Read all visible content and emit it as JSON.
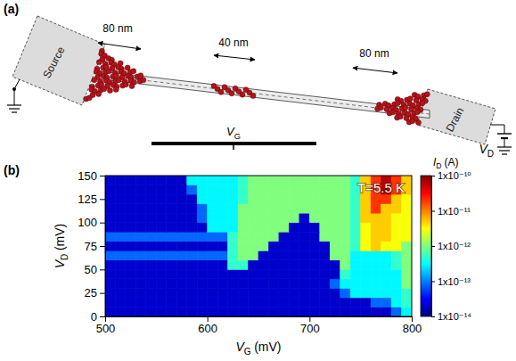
{
  "diagram": {
    "panel_label": "(a)",
    "source": "Source",
    "drain": "Drain",
    "dimensions": [
      "80 nm",
      "40 nm",
      "80 nm"
    ],
    "gate": {
      "symbol": "V",
      "subscript": "G"
    },
    "bias": {
      "symbol": "V",
      "subscript": "D"
    }
  },
  "chart_data": {
    "type": "heatmap",
    "panel_label": "(b)",
    "annotation": "T=5.5 K",
    "x_label": {
      "symbol": "V",
      "subscript": "G",
      "unit": "(mV)"
    },
    "y_label": {
      "symbol": "V",
      "subscript": "D",
      "unit": "(mV)"
    },
    "xlim": [
      500,
      800
    ],
    "ylim": [
      0,
      150
    ],
    "xticks": [
      500,
      600,
      700,
      800
    ],
    "yticks": [
      0,
      25,
      50,
      75,
      100,
      125,
      150
    ],
    "x": [
      505,
      515,
      525,
      535,
      545,
      555,
      565,
      575,
      585,
      595,
      605,
      615,
      625,
      635,
      645,
      655,
      665,
      675,
      685,
      695,
      705,
      715,
      725,
      735,
      745,
      755,
      765,
      775,
      785,
      795
    ],
    "y": [
      5,
      15,
      25,
      35,
      45,
      55,
      65,
      75,
      85,
      95,
      105,
      115,
      125,
      135,
      145
    ],
    "z": [
      [
        2e-14,
        2e-14,
        2e-14,
        2e-14,
        2e-14,
        2e-14,
        2e-14,
        2e-14,
        2e-14,
        2e-14,
        2e-14,
        2e-14,
        2e-14,
        2e-14,
        2e-14,
        2e-14,
        2e-14,
        2e-14,
        2e-14,
        2e-14,
        2e-14,
        2e-14,
        2e-14,
        2e-14,
        2e-14,
        2e-14,
        2e-14,
        2e-14,
        8e-14,
        3e-13
      ],
      [
        2e-14,
        2e-14,
        2e-14,
        2e-14,
        2e-14,
        2e-14,
        2e-14,
        2e-14,
        2e-14,
        2e-14,
        2e-14,
        2e-14,
        2e-14,
        2e-14,
        2e-14,
        2e-14,
        2e-14,
        2e-14,
        2e-14,
        2e-14,
        2e-14,
        2e-14,
        2e-14,
        2e-14,
        2e-14,
        2e-14,
        8e-14,
        8e-14,
        3e-13,
        5e-13
      ],
      [
        2e-14,
        2e-14,
        2e-14,
        2e-14,
        2e-14,
        2e-14,
        2e-14,
        2e-14,
        2e-14,
        2e-14,
        2e-14,
        2e-14,
        2e-14,
        2e-14,
        2e-14,
        2e-14,
        2e-14,
        2e-14,
        2e-14,
        2e-14,
        2e-14,
        2e-14,
        2e-14,
        8e-14,
        3e-13,
        3e-13,
        3e-13,
        3e-13,
        3e-13,
        5e-13
      ],
      [
        2e-14,
        2e-14,
        2e-14,
        2e-14,
        2e-14,
        2e-14,
        2e-14,
        2e-14,
        2e-14,
        2e-14,
        2e-14,
        2e-14,
        2e-14,
        2e-14,
        2e-14,
        2e-14,
        2e-14,
        2e-14,
        2e-14,
        2e-14,
        2e-14,
        2e-14,
        8e-14,
        3e-13,
        3e-13,
        3e-13,
        3e-13,
        3e-13,
        3e-13,
        1e-12
      ],
      [
        2e-14,
        2e-14,
        2e-14,
        2e-14,
        2e-14,
        2e-14,
        2e-14,
        2e-14,
        2e-14,
        2e-14,
        2e-14,
        2e-14,
        2e-14,
        2e-14,
        2e-14,
        2e-14,
        2e-14,
        2e-14,
        2e-14,
        2e-14,
        2e-14,
        2e-14,
        2e-14,
        5e-13,
        3e-13,
        3e-13,
        3e-13,
        3e-13,
        3e-13,
        1e-12
      ],
      [
        2e-14,
        2e-14,
        2e-14,
        2e-14,
        2e-14,
        2e-14,
        2e-14,
        2e-14,
        2e-14,
        2e-14,
        2e-14,
        2e-14,
        5e-13,
        5e-13,
        2e-14,
        2e-14,
        2e-14,
        2e-14,
        2e-14,
        2e-14,
        2e-14,
        2e-14,
        2e-14,
        1e-12,
        3e-13,
        3e-13,
        3e-13,
        3e-13,
        5e-13,
        1e-12
      ],
      [
        8e-14,
        8e-14,
        8e-14,
        8e-14,
        8e-14,
        8e-14,
        8e-14,
        8e-14,
        8e-14,
        8e-14,
        8e-14,
        8e-14,
        5e-13,
        1e-12,
        1e-12,
        2e-14,
        2e-14,
        2e-14,
        2e-14,
        2e-14,
        2e-14,
        2e-14,
        1e-12,
        1e-12,
        3e-13,
        3e-13,
        3e-13,
        3e-13,
        5e-13,
        1e-12
      ],
      [
        2e-14,
        2e-14,
        2e-14,
        2e-14,
        2e-14,
        2e-14,
        2e-14,
        2e-14,
        2e-14,
        2e-14,
        2e-14,
        2e-14,
        5e-13,
        1e-12,
        1e-12,
        1e-12,
        2e-14,
        2e-14,
        2e-14,
        2e-14,
        2e-14,
        2e-14,
        1e-12,
        1e-12,
        5e-13,
        3e-12,
        5e-12,
        3e-12,
        3e-12,
        1e-12
      ],
      [
        8e-14,
        8e-14,
        8e-14,
        8e-14,
        8e-14,
        8e-14,
        8e-14,
        8e-14,
        8e-14,
        8e-14,
        8e-14,
        8e-14,
        5e-13,
        1e-12,
        1e-12,
        1e-12,
        1e-12,
        2e-14,
        2e-14,
        2e-14,
        2e-14,
        1e-12,
        1e-12,
        1e-12,
        5e-13,
        3e-12,
        5e-12,
        5e-12,
        3e-12,
        3e-12
      ],
      [
        2e-14,
        2e-14,
        2e-14,
        2e-14,
        2e-14,
        2e-14,
        2e-14,
        2e-14,
        2e-14,
        2e-14,
        3e-13,
        3e-13,
        3e-13,
        1e-12,
        1e-12,
        1e-12,
        1e-12,
        1e-12,
        2e-14,
        2e-14,
        2e-14,
        1e-12,
        1e-12,
        1e-12,
        5e-13,
        3e-12,
        5e-12,
        5e-12,
        3e-12,
        3e-12
      ],
      [
        2e-14,
        2e-14,
        2e-14,
        2e-14,
        2e-14,
        2e-14,
        2e-14,
        2e-14,
        2e-14,
        8e-14,
        3e-13,
        3e-13,
        3e-13,
        1e-12,
        1e-12,
        1e-12,
        1e-12,
        1e-12,
        1e-12,
        2e-14,
        1e-12,
        1e-12,
        1e-12,
        1e-12,
        5e-13,
        5e-12,
        5e-12,
        5e-12,
        3e-12,
        3e-12
      ],
      [
        2e-14,
        2e-14,
        2e-14,
        2e-14,
        2e-14,
        2e-14,
        2e-14,
        2e-14,
        2e-14,
        8e-14,
        3e-13,
        3e-13,
        3e-13,
        1e-12,
        1e-12,
        1e-12,
        1e-12,
        1e-12,
        1e-12,
        1e-12,
        1e-12,
        1e-12,
        1e-12,
        1e-12,
        5e-13,
        5e-12,
        2e-11,
        5e-12,
        5e-12,
        3e-12
      ],
      [
        2e-14,
        2e-14,
        2e-14,
        2e-14,
        2e-14,
        2e-14,
        2e-14,
        2e-14,
        2e-14,
        3e-13,
        3e-13,
        3e-13,
        3e-13,
        5e-13,
        1e-12,
        1e-12,
        1e-12,
        1e-12,
        1e-12,
        1e-12,
        1e-12,
        1e-12,
        1e-12,
        1e-12,
        5e-13,
        5e-12,
        2e-11,
        2e-11,
        5e-12,
        3e-12
      ],
      [
        2e-14,
        2e-14,
        2e-14,
        2e-14,
        2e-14,
        2e-14,
        2e-14,
        2e-14,
        8e-14,
        3e-13,
        3e-13,
        3e-13,
        3e-13,
        5e-13,
        1e-12,
        1e-12,
        1e-12,
        1e-12,
        1e-12,
        1e-12,
        1e-12,
        1e-12,
        1e-12,
        1e-12,
        5e-13,
        5e-12,
        2e-11,
        6e-11,
        2e-11,
        5e-12
      ],
      [
        2e-14,
        2e-14,
        2e-14,
        2e-14,
        2e-14,
        2e-14,
        2e-14,
        2e-14,
        3e-13,
        3e-13,
        3e-13,
        3e-13,
        3e-13,
        5e-13,
        1e-12,
        1e-12,
        1e-12,
        1e-12,
        1e-12,
        1e-12,
        1e-12,
        1e-12,
        1e-12,
        1e-12,
        5e-13,
        5e-12,
        2e-11,
        6e-11,
        2e-11,
        5e-12
      ]
    ],
    "colorbar": {
      "title": {
        "symbol": "I",
        "subscript": "D",
        "unit": "(A)"
      },
      "range": [
        1e-14,
        1e-10
      ],
      "log": true,
      "ticks": [
        {
          "value": 1e-10,
          "label": "1x10⁻¹⁰"
        },
        {
          "value": 1e-11,
          "label": "1x10⁻¹¹"
        },
        {
          "value": 1e-12,
          "label": "1x10⁻¹²"
        },
        {
          "value": 1e-13,
          "label": "1x10⁻¹³"
        },
        {
          "value": 1e-14,
          "label": "1x10⁻¹⁴"
        }
      ]
    }
  }
}
